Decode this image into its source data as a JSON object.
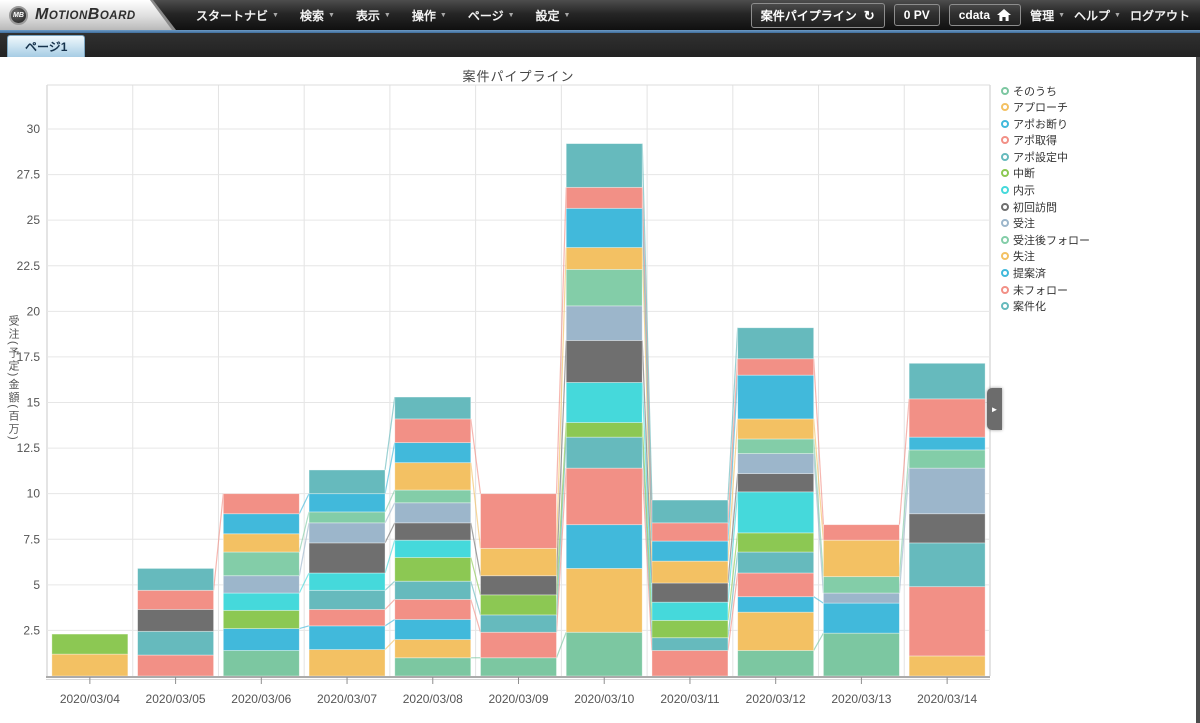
{
  "ui": {
    "caret": "▼",
    "arrow_right": "►",
    "refresh": "↻"
  },
  "topbar": {
    "logo": {
      "badge": "MB",
      "word_m": "M",
      "word_otion": "OTION",
      "word_b": "B",
      "word_oard": "OARD"
    },
    "menus": [
      "スタートナビ",
      "検索",
      "表示",
      "操作",
      "ページ",
      "設定"
    ],
    "board_button_label": "案件パイプライン",
    "pv_badge": "0 PV",
    "user_label": "cdata",
    "admin_label": "管理",
    "help_label": "ヘルプ",
    "logout_label": "ログアウト"
  },
  "tabbar": {
    "tabs": [
      {
        "label": "ページ1",
        "active": true
      }
    ]
  },
  "chart_data": {
    "type": "bar",
    "stacked": true,
    "title": "案件パイプライン",
    "xlabel": "",
    "ylabel": "受注(予定)金額(百万)",
    "ylim": [
      0,
      32
    ],
    "yticks": [
      2.5,
      5,
      7.5,
      10,
      12.5,
      15,
      17.5,
      20,
      22.5,
      25,
      27.5,
      30
    ],
    "grid": true,
    "legend_position": "right",
    "categories": [
      "2020/03/04",
      "2020/03/05",
      "2020/03/06",
      "2020/03/07",
      "2020/03/08",
      "2020/03/09",
      "2020/03/10",
      "2020/03/11",
      "2020/03/12",
      "2020/03/13",
      "2020/03/14"
    ],
    "series": [
      {
        "name": "そのうち",
        "color": "#7CC7A1",
        "values": [
          0,
          0,
          1.4,
          0,
          1.0,
          1.0,
          2.4,
          0,
          1.4,
          2.35,
          0
        ]
      },
      {
        "name": "アプローチ",
        "color": "#F3C163",
        "values": [
          1.2,
          0,
          0,
          1.45,
          1.0,
          0,
          3.5,
          0,
          2.1,
          0,
          1.1
        ]
      },
      {
        "name": "アポお断り",
        "color": "#41B9DB",
        "values": [
          0,
          0,
          1.2,
          1.3,
          1.1,
          0,
          2.4,
          0,
          0.85,
          1.65,
          0
        ]
      },
      {
        "name": "アポ取得",
        "color": "#F29086",
        "values": [
          0,
          1.15,
          0,
          0.9,
          1.1,
          1.4,
          3.1,
          1.4,
          1.3,
          0,
          3.8
        ]
      },
      {
        "name": "アポ設定中",
        "color": "#66BABD",
        "values": [
          0,
          1.3,
          0,
          1.05,
          1.0,
          0.95,
          1.7,
          0.7,
          1.15,
          0,
          2.4
        ]
      },
      {
        "name": "中断",
        "color": "#8CC853",
        "values": [
          1.1,
          0,
          1.0,
          0,
          1.3,
          1.1,
          0.8,
          0.95,
          1.05,
          0,
          0
        ]
      },
      {
        "name": "内示",
        "color": "#45D9DB",
        "values": [
          0,
          0,
          0.95,
          0.95,
          0.95,
          0,
          2.2,
          1.0,
          2.25,
          0,
          0
        ]
      },
      {
        "name": "初回訪問",
        "color": "#6F6F6F",
        "values": [
          0,
          1.2,
          0,
          1.65,
          0.95,
          1.05,
          2.3,
          1.05,
          1.0,
          0,
          1.6
        ]
      },
      {
        "name": "受注",
        "color": "#9CB6CB",
        "values": [
          0,
          0,
          0.95,
          1.1,
          1.1,
          0,
          1.9,
          0,
          1.1,
          0.55,
          2.5
        ]
      },
      {
        "name": "受注後フォロー",
        "color": "#83CDA8",
        "values": [
          0,
          0,
          1.3,
          0.6,
          0.7,
          0,
          2.0,
          0,
          0.8,
          0.9,
          1.0
        ]
      },
      {
        "name": "失注",
        "color": "#F3C163",
        "values": [
          0,
          0,
          1.0,
          0,
          1.5,
          1.5,
          1.2,
          1.2,
          1.1,
          2.0,
          0
        ]
      },
      {
        "name": "提案済",
        "color": "#41B9DB",
        "values": [
          0,
          0,
          1.1,
          1.0,
          1.1,
          0,
          2.15,
          1.1,
          2.4,
          0,
          0.7
        ]
      },
      {
        "name": "未フォロー",
        "color": "#F29086",
        "values": [
          0,
          1.05,
          1.1,
          0,
          1.3,
          3.0,
          1.15,
          1.0,
          0.9,
          0.85,
          2.1
        ]
      },
      {
        "name": "案件化",
        "color": "#66BABD",
        "values": [
          0,
          1.2,
          0,
          1.3,
          1.2,
          0,
          2.4,
          1.25,
          1.7,
          0,
          1.95
        ]
      }
    ]
  }
}
